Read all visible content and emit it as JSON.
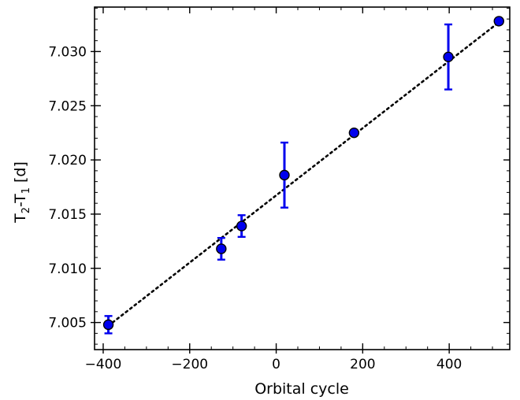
{
  "chart_data": {
    "type": "scatter",
    "xlabel": "Orbital cycle",
    "ylabel": {
      "main": "T",
      "sub1": "2",
      "mid": "-T",
      "sub2": "1",
      "unit": " [d]"
    },
    "xlim": [
      -420,
      540
    ],
    "ylim": [
      7.0025,
      7.0341
    ],
    "xticks": [
      -400,
      -200,
      0,
      200,
      400
    ],
    "xtick_labels": [
      "−400",
      "−200",
      "0",
      "200",
      "400"
    ],
    "yticks": [
      7.005,
      7.01,
      7.015,
      7.02,
      7.025,
      7.03
    ],
    "ytick_labels": [
      "7.005",
      "7.010",
      "7.015",
      "7.020",
      "7.025",
      "7.030"
    ],
    "x_minor_step": 50,
    "y_minor_step": 0.001,
    "grid": false,
    "series": [
      {
        "marker_color": "#0000ee",
        "errorbar_color": "#0000ee",
        "points": [
          {
            "x": -388,
            "y": 7.0048,
            "yerr": 0.0008
          },
          {
            "x": -127,
            "y": 7.0118,
            "yerr": 0.001
          },
          {
            "x": -80,
            "y": 7.0139,
            "yerr": 0.001
          },
          {
            "x": 19,
            "y": 7.0186,
            "yerr": 0.003
          },
          {
            "x": 180,
            "y": 7.0225,
            "yerr": 0.0
          },
          {
            "x": 398,
            "y": 7.0295,
            "yerr": 0.003
          },
          {
            "x": 515,
            "y": 7.0328,
            "yerr": 0.0
          }
        ]
      }
    ],
    "fit_line": {
      "style": "dotted",
      "color": "#000000",
      "x": [
        -388,
        515
      ],
      "y": [
        7.0047,
        7.0327
      ]
    }
  }
}
